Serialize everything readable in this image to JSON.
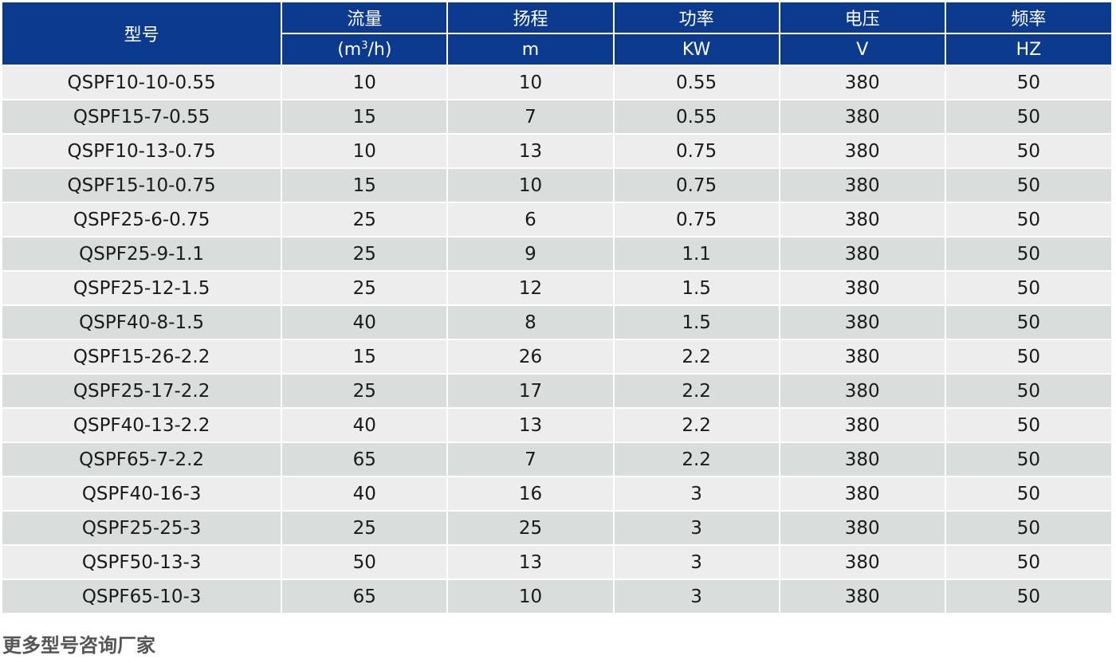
{
  "header": {
    "model": "型号",
    "flow": "流量",
    "flow_unit_prefix": "(m",
    "flow_unit_sup": "3",
    "flow_unit_suffix": "/h)",
    "head": "扬程",
    "head_unit": "m",
    "power": "功率",
    "power_unit": "KW",
    "voltage": "电压",
    "voltage_unit": "V",
    "frequency": "频率",
    "frequency_unit": "HZ"
  },
  "rows": [
    [
      "QSPF10-10-0.55",
      "10",
      "10",
      "0.55",
      "380",
      "50"
    ],
    [
      "QSPF15-7-0.55",
      "15",
      "7",
      "0.55",
      "380",
      "50"
    ],
    [
      "QSPF10-13-0.75",
      "10",
      "13",
      "0.75",
      "380",
      "50"
    ],
    [
      "QSPF15-10-0.75",
      "15",
      "10",
      "0.75",
      "380",
      "50"
    ],
    [
      "QSPF25-6-0.75",
      "25",
      "6",
      "0.75",
      "380",
      "50"
    ],
    [
      "QSPF25-9-1.1",
      "25",
      "9",
      "1.1",
      "380",
      "50"
    ],
    [
      "QSPF25-12-1.5",
      "25",
      "12",
      "1.5",
      "380",
      "50"
    ],
    [
      "QSPF40-8-1.5",
      "40",
      "8",
      "1.5",
      "380",
      "50"
    ],
    [
      "QSPF15-26-2.2",
      "15",
      "26",
      "2.2",
      "380",
      "50"
    ],
    [
      "QSPF25-17-2.2",
      "25",
      "17",
      "2.2",
      "380",
      "50"
    ],
    [
      "QSPF40-13-2.2",
      "40",
      "13",
      "2.2",
      "380",
      "50"
    ],
    [
      "QSPF65-7-2.2",
      "65",
      "7",
      "2.2",
      "380",
      "50"
    ],
    [
      "QSPF40-16-3",
      "40",
      "16",
      "3",
      "380",
      "50"
    ],
    [
      "QSPF25-25-3",
      "25",
      "25",
      "3",
      "380",
      "50"
    ],
    [
      "QSPF50-13-3",
      "50",
      "13",
      "3",
      "380",
      "50"
    ],
    [
      "QSPF65-10-3",
      "65",
      "10",
      "3",
      "380",
      "50"
    ]
  ],
  "footer_note": "更多型号咨询厂家",
  "colors": {
    "header_bg": "#0b3a8e",
    "row_light": "#ededed",
    "row_dark": "#d9dddc"
  }
}
